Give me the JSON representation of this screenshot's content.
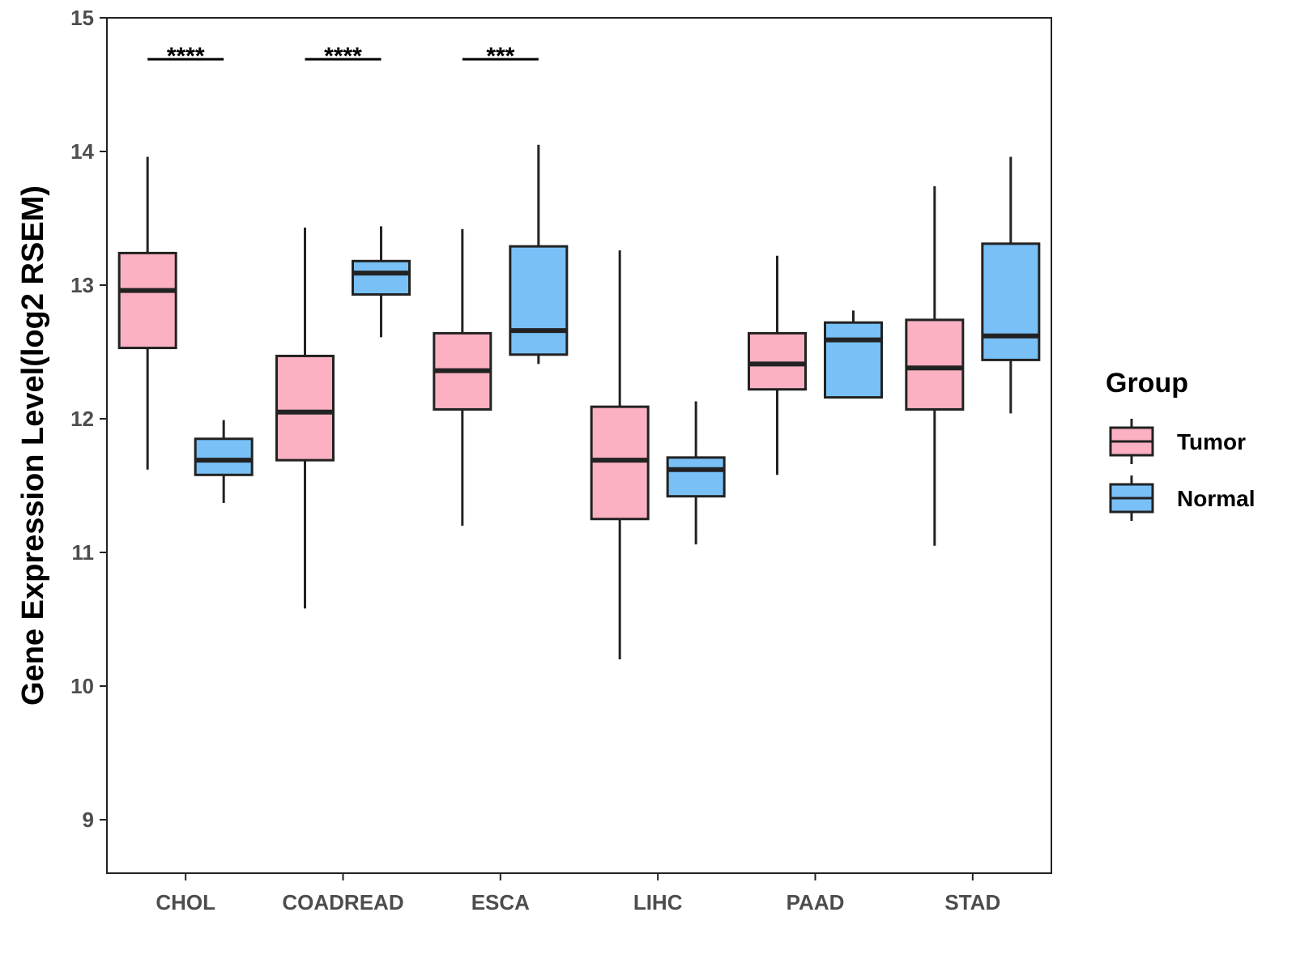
{
  "chart_data": {
    "type": "boxplot",
    "title": "",
    "xlabel": "",
    "ylabel": "Gene Expression Level(log2 RSEM)",
    "ylim": [
      8.6,
      15
    ],
    "yticks": [
      9,
      10,
      11,
      12,
      13,
      14,
      15
    ],
    "categories": [
      "CHOL",
      "COADREAD",
      "ESCA",
      "LIHC",
      "PAAD",
      "STAD"
    ],
    "legend": {
      "title": "Group",
      "position": "right",
      "entries": [
        "Tumor",
        "Normal"
      ]
    },
    "colors": {
      "Tumor": "#FBB1C1",
      "Normal": "#78C0F6",
      "outline": "#222222"
    },
    "series": [
      {
        "name": "Tumor",
        "boxes": [
          {
            "category": "CHOL",
            "min": 11.62,
            "q1": 12.53,
            "median": 12.96,
            "q3": 13.24,
            "max": 13.96
          },
          {
            "category": "COADREAD",
            "min": 10.58,
            "q1": 11.69,
            "median": 12.05,
            "q3": 12.47,
            "max": 13.43
          },
          {
            "category": "ESCA",
            "min": 11.2,
            "q1": 12.07,
            "median": 12.36,
            "q3": 12.64,
            "max": 13.42
          },
          {
            "category": "LIHC",
            "min": 10.2,
            "q1": 11.25,
            "median": 11.69,
            "q3": 12.09,
            "max": 13.26
          },
          {
            "category": "PAAD",
            "min": 11.58,
            "q1": 12.22,
            "median": 12.41,
            "q3": 12.64,
            "max": 13.22
          },
          {
            "category": "STAD",
            "min": 11.05,
            "q1": 12.07,
            "median": 12.38,
            "q3": 12.74,
            "max": 13.74
          }
        ]
      },
      {
        "name": "Normal",
        "boxes": [
          {
            "category": "CHOL",
            "min": 11.37,
            "q1": 11.58,
            "median": 11.69,
            "q3": 11.85,
            "max": 11.99
          },
          {
            "category": "COADREAD",
            "min": 12.61,
            "q1": 12.93,
            "median": 13.09,
            "q3": 13.18,
            "max": 13.44
          },
          {
            "category": "ESCA",
            "min": 12.41,
            "q1": 12.48,
            "median": 12.66,
            "q3": 13.29,
            "max": 14.05
          },
          {
            "category": "LIHC",
            "min": 11.06,
            "q1": 11.42,
            "median": 11.62,
            "q3": 11.71,
            "max": 12.13
          },
          {
            "category": "PAAD",
            "min": 12.16,
            "q1": 12.16,
            "median": 12.59,
            "q3": 12.72,
            "max": 12.81
          },
          {
            "category": "STAD",
            "min": 12.04,
            "q1": 12.44,
            "median": 12.62,
            "q3": 13.31,
            "max": 13.96
          }
        ]
      }
    ],
    "significance": [
      {
        "category": "CHOL",
        "label": "****",
        "y": 14.69
      },
      {
        "category": "COADREAD",
        "label": "****",
        "y": 14.69
      },
      {
        "category": "ESCA",
        "label": "***",
        "y": 14.69
      }
    ]
  }
}
